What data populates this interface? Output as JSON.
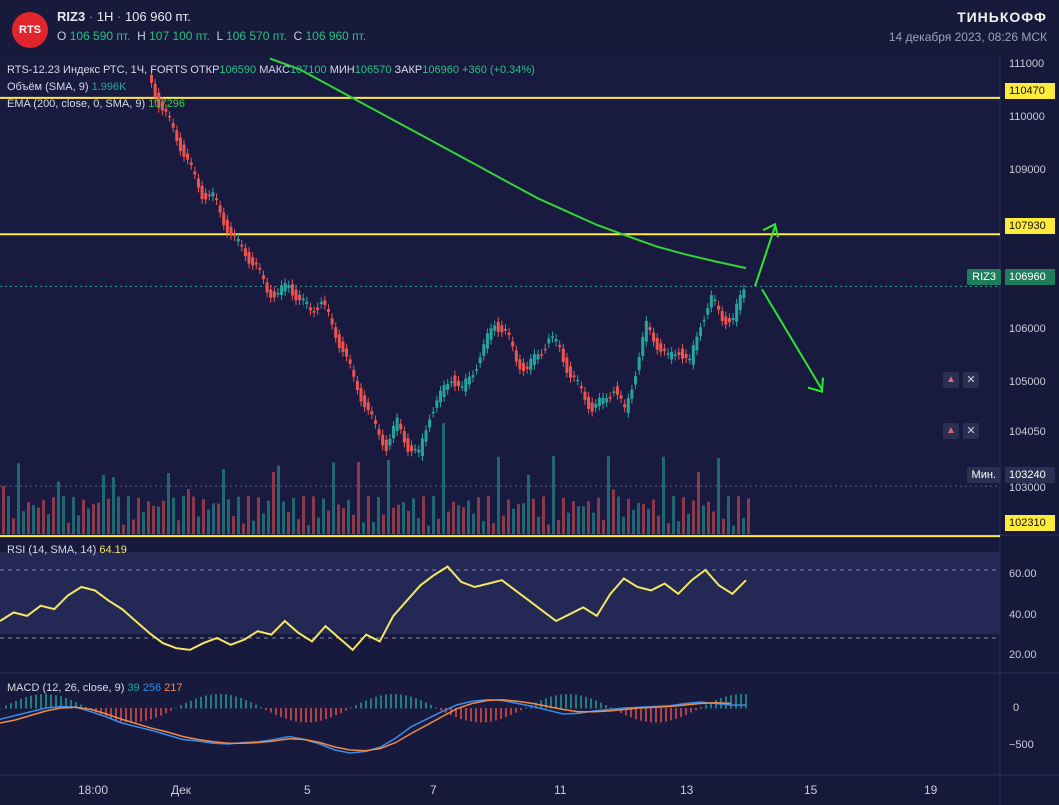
{
  "header": {
    "logo_text": "RTS",
    "symbol": "RIZ3",
    "interval": "1H",
    "last_price": "106 960 пт.",
    "ohlc": {
      "o_label": "O",
      "o_value": "106 590 пт.",
      "h_label": "H",
      "h_value": "107 100 пт.",
      "l_label": "L",
      "l_value": "106 570 пт.",
      "c_label": "C",
      "c_value": "106 960 пт."
    },
    "brand": "ТИНЬКОФФ",
    "datetime": "14 декабря 2023, 08:26 МСК"
  },
  "legend": {
    "instrument": "RTS-12.23 Индекс РТС, 1Ч, FORTS",
    "open_label": "ОТКР",
    "open_value": "106590",
    "high_label": "МАКС",
    "high_value": "107100",
    "low_label": "МИН",
    "low_value": "106570",
    "close_label": "ЗАКР",
    "close_value": "106960",
    "change": "+360 (+0.34%)",
    "volume": "Объём (SMA, 9)",
    "volume_value": "1.996K",
    "ema": "EMA (200, close, 0, SMA, 9)",
    "ema_value": "107296",
    "rsi": "RSI (14, SMA, 14)",
    "rsi_value": "64.19",
    "macd": "MACD (12, 26, close, 9)",
    "macd_v1": "39",
    "macd_v2": "256",
    "macd_v3": "217"
  },
  "price_axis": {
    "ticks": [
      "111000",
      "110000",
      "109000",
      "106000",
      "105000",
      "104050",
      "103000"
    ],
    "levels": [
      "110470",
      "107930",
      "106960",
      "103240",
      "102310"
    ],
    "current_tag": "RIZ3",
    "min_tag": "Мин."
  },
  "rsi_axis": {
    "ticks": [
      "60.00",
      "40.00",
      "20.00"
    ]
  },
  "macd_axis": {
    "ticks": [
      "0",
      "−500"
    ]
  },
  "time_axis": {
    "ticks": [
      "18:00",
      "Дек",
      "5",
      "7",
      "11",
      "13",
      "15",
      "19"
    ]
  },
  "colors": {
    "up": "#26a69a",
    "down": "#ef5350",
    "level": "#ffeb3b",
    "ema": "#35d435",
    "rsi": "#f5e663",
    "macd": "#3b8be8",
    "signal": "#f08a4b",
    "annotation_arrow": "#2ee62e",
    "rsi_band": "#2b2f5e"
  },
  "chart_data": {
    "type": "candlestick",
    "x_range": [
      "Nov 30 12:00",
      "Dec 19"
    ],
    "y_range": [
      102200,
      111100
    ],
    "close_path": [
      110900,
      110400,
      110000,
      109600,
      109100,
      108700,
      108600,
      108200,
      107800,
      107600,
      107300,
      106900,
      106800,
      107000,
      106700,
      106500,
      106700,
      106200,
      105800,
      105200,
      104800,
      104300,
      104000,
      104400,
      104000,
      103800,
      104600,
      104900,
      105300,
      105000,
      105400,
      105800,
      106300,
      106100,
      105600,
      105400,
      105700,
      106000,
      105800,
      105300,
      105000,
      104700,
      104800,
      105100,
      104600,
      105400,
      106200,
      105900,
      105600,
      105800,
      105500,
      106300,
      106700,
      106400,
      106300,
      106960
    ],
    "rsi_values": [
      40,
      45,
      43,
      49,
      47,
      55,
      60,
      58,
      52,
      47,
      40,
      33,
      27,
      24,
      23,
      27,
      30,
      26,
      29,
      34,
      32,
      40,
      33,
      28,
      37,
      30,
      23,
      32,
      28,
      43,
      52,
      61,
      67,
      72,
      63,
      60,
      62,
      64,
      58,
      52,
      46,
      40,
      44,
      48,
      43,
      56,
      65,
      60,
      58,
      62,
      56,
      64,
      70,
      61,
      56,
      64
    ],
    "macd_values": [
      -150,
      -100,
      -50,
      0,
      20,
      10,
      -50,
      -120,
      -200,
      -250,
      -300,
      -360,
      -420,
      -440,
      -470,
      -480,
      -460,
      -450,
      -420,
      -380,
      -420,
      -480,
      -560,
      -600,
      -580,
      -520,
      -400,
      -250,
      -150,
      -50,
      40,
      90,
      110,
      100,
      60,
      20,
      -30,
      -80,
      -70,
      -40,
      -20,
      0,
      10,
      20,
      30,
      60,
      80,
      60,
      40,
      39
    ],
    "signal_values": [
      -200,
      -160,
      -100,
      -40,
      0,
      10,
      -20,
      -80,
      -150,
      -210,
      -270,
      -320,
      -380,
      -420,
      -450,
      -470,
      -470,
      -460,
      -440,
      -410,
      -420,
      -460,
      -520,
      -560,
      -570,
      -540,
      -460,
      -340,
      -230,
      -120,
      -10,
      60,
      100,
      110,
      90,
      60,
      20,
      -20,
      -50,
      -50,
      -40,
      -20,
      0,
      10,
      20,
      40,
      60,
      70,
      60,
      217
    ],
    "ema_path": [
      111200,
      111000,
      110700,
      110400,
      110100,
      109800,
      109500,
      109200,
      108900,
      108600,
      108350,
      108100,
      107900,
      107700,
      107550,
      107420,
      107300
    ],
    "annotations": [
      "arrow up toward 107930",
      "arrow down toward 105000"
    ]
  }
}
